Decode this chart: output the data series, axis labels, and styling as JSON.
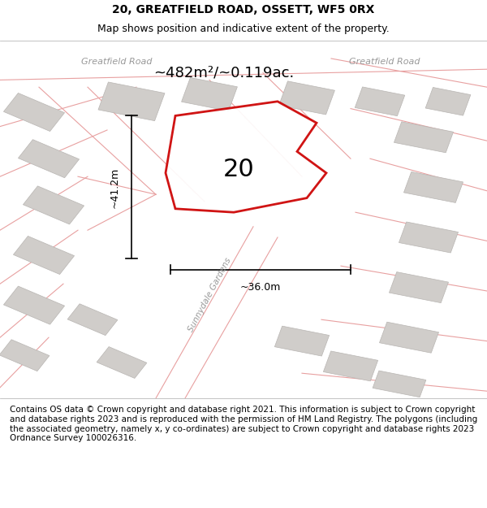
{
  "title_line1": "20, GREATFIELD ROAD, OSSETT, WF5 0RX",
  "title_line2": "Map shows position and indicative extent of the property.",
  "footer_text": "Contains OS data © Crown copyright and database right 2021. This information is subject to Crown copyright and database rights 2023 and is reproduced with the permission of HM Land Registry. The polygons (including the associated geometry, namely x, y co-ordinates) are subject to Crown copyright and database rights 2023 Ordnance Survey 100026316.",
  "area_label": "~482m²/~0.119ac.",
  "width_label": "~36.0m",
  "height_label": "~41.2m",
  "plot_number": "20",
  "road_label_top_left": "Greatfield Road",
  "road_label_top_right": "Greatfield Road",
  "road_label_bottom": "Sunnydale Gardens",
  "map_bg_color": "#f2f0ed",
  "plot_edge_color": "#cc0000",
  "building_fill": "#d0cdca",
  "building_edge": "#b8b5b2",
  "road_line_color": "#e8a0a0",
  "title_fontsize": 10,
  "subtitle_fontsize": 9,
  "footer_fontsize": 7.5,
  "header_bg": "#ffffff",
  "footer_bg": "#ffffff",
  "map_border_color": "#cccccc"
}
